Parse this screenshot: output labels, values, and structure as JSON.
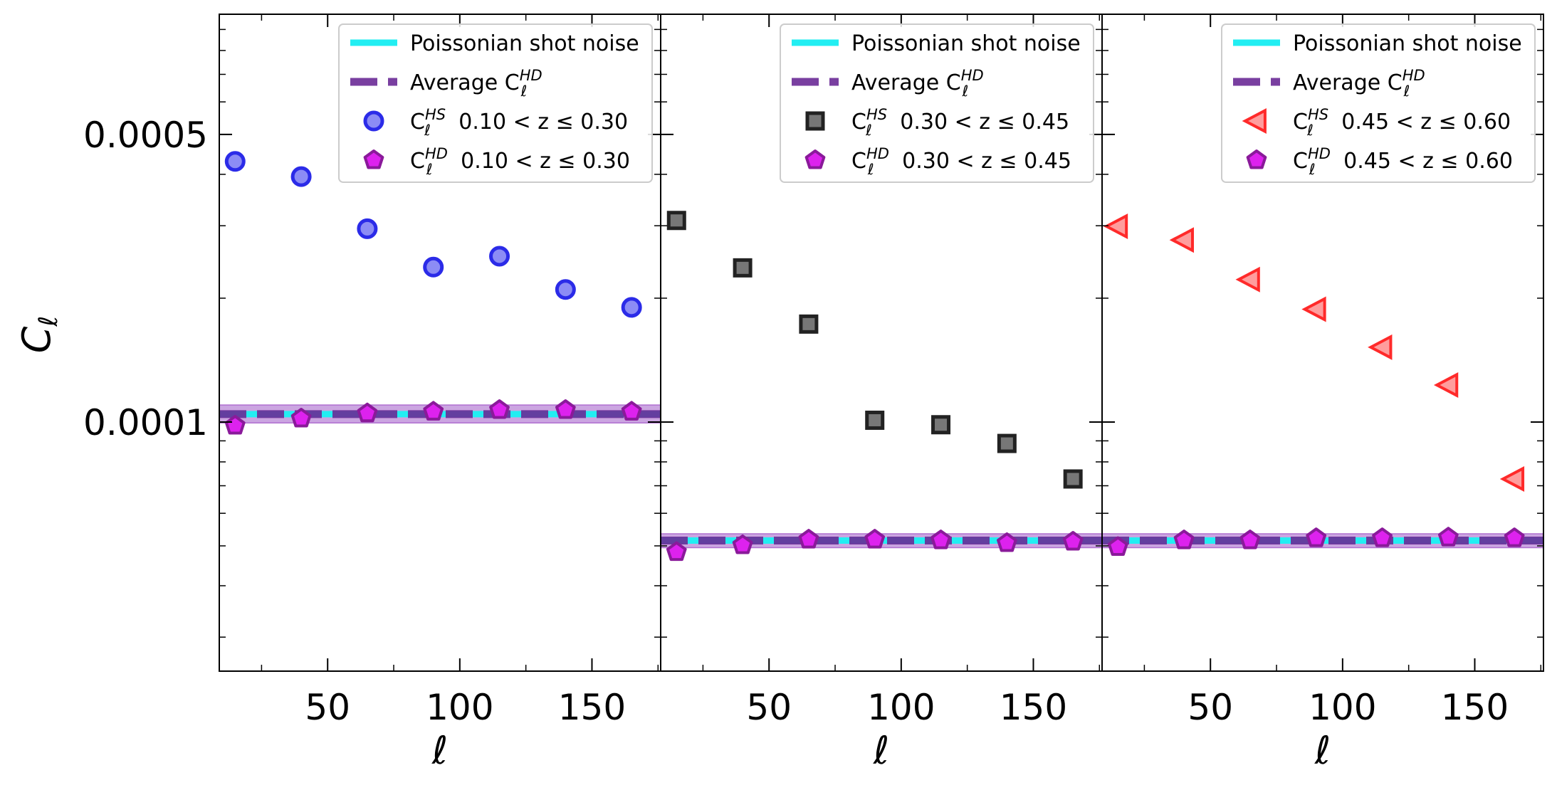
{
  "chart_data": {
    "type": "scatter",
    "ylabel": "C",
    "ylabel_subscript": "ℓ",
    "xlabel": "ℓ",
    "yscale": "log",
    "ylim": [
      2.48e-05,
      0.00098
    ],
    "xlim": [
      9,
      176
    ],
    "x_ticks": [
      50,
      100,
      150
    ],
    "x_tick_labels": [
      "50",
      "100",
      "150"
    ],
    "y_tick_labels": [
      {
        "value": 0.0005,
        "label": "0.0005"
      },
      {
        "value": 0.0001,
        "label": "0.0001"
      }
    ],
    "grid": false,
    "legend_placement": "top-right",
    "panels": [
      {
        "legend": [
          {
            "kind": "line",
            "text": "Poissonian shot noise"
          },
          {
            "kind": "dash",
            "text": "Average C",
            "sup": "HD",
            "sub": "ℓ"
          },
          {
            "kind": "marker",
            "text": "C",
            "sup": "HS",
            "sub": "ℓ",
            "range": "0.10 < z ≤ 0.30"
          },
          {
            "kind": "pentagon",
            "text": "C",
            "sup": "HD",
            "sub": "ℓ",
            "range": "0.10 < z ≤ 0.30"
          }
        ],
        "shot_noise": 0.0001045,
        "avg_hd": 0.0001045,
        "band": [
          9.95e-05,
          0.00011
        ],
        "series": [
          {
            "name": "C_ℓ^HS 0.10<z≤0.30",
            "marker": "circle",
            "color": "#3a3af0",
            "x": [
              15,
              40,
              65,
              90,
              115,
              140,
              165
            ],
            "y": [
              0.00043,
              0.000395,
              0.000295,
              0.000238,
              0.000253,
              0.00021,
              0.00019
            ]
          },
          {
            "name": "C_ℓ^HD 0.10<z≤0.30",
            "marker": "pentagon",
            "color": "#cc22dd",
            "x": [
              15,
              40,
              65,
              90,
              115,
              140,
              165
            ],
            "y": [
              9.8e-05,
              0.000102,
              0.000105,
              0.000106,
              0.000107,
              0.000107,
              0.000106
            ]
          }
        ]
      },
      {
        "legend": [
          {
            "kind": "line",
            "text": "Poissonian shot noise"
          },
          {
            "kind": "dash",
            "text": "Average C",
            "sup": "HD",
            "sub": "ℓ"
          },
          {
            "kind": "marker",
            "text": "C",
            "sup": "HS",
            "sub": "ℓ",
            "range": "0.30 < z ≤ 0.45"
          },
          {
            "kind": "pentagon",
            "text": "C",
            "sup": "HD",
            "sub": "ℓ",
            "range": "0.30 < z ≤ 0.45"
          }
        ],
        "shot_noise": 5.15e-05,
        "avg_hd": 5.15e-05,
        "band": [
          4.95e-05,
          5.35e-05
        ],
        "series": [
          {
            "name": "C_ℓ^HS 0.30<z≤0.45",
            "marker": "square",
            "color": "#6e6e6e",
            "x": [
              15,
              40,
              65,
              90,
              115,
              140,
              165
            ],
            "y": [
              0.000309,
              0.000237,
              0.000173,
              0.000101,
              9.85e-05,
              8.87e-05,
              7.27e-05
            ]
          },
          {
            "name": "C_ℓ^HD 0.30<z≤0.45",
            "marker": "pentagon",
            "color": "#cc22dd",
            "x": [
              15,
              40,
              65,
              90,
              115,
              140,
              165
            ],
            "y": [
              4.83e-05,
              5.02e-05,
              5.18e-05,
              5.18e-05,
              5.16e-05,
              5.08e-05,
              5.12e-05
            ]
          }
        ]
      },
      {
        "legend": [
          {
            "kind": "line",
            "text": "Poissonian shot noise"
          },
          {
            "kind": "dash",
            "text": "Average C",
            "sup": "HD",
            "sub": "ℓ"
          },
          {
            "kind": "marker",
            "text": "C",
            "sup": "HS",
            "sub": "ℓ",
            "range": "0.45 < z ≤ 0.60"
          },
          {
            "kind": "pentagon",
            "text": "C",
            "sup": "HD",
            "sub": "ℓ",
            "range": "0.45 < z ≤ 0.60"
          }
        ],
        "shot_noise": 5.15e-05,
        "avg_hd": 5.15e-05,
        "band": [
          4.95e-05,
          5.35e-05
        ],
        "series": [
          {
            "name": "C_ℓ^HS 0.45<z≤0.60",
            "marker": "triangle-left",
            "color": "#ff6666",
            "x": [
              15,
              40,
              65,
              90,
              115,
              140,
              165
            ],
            "y": [
              0.000299,
              0.000277,
              0.000222,
              0.000188,
              0.000152,
              0.000123,
              7.27e-05
            ]
          },
          {
            "name": "C_ℓ^HD 0.45<z≤0.60",
            "marker": "pentagon",
            "color": "#cc22dd",
            "x": [
              15,
              40,
              65,
              90,
              115,
              140,
              165
            ],
            "y": [
              4.97e-05,
              5.16e-05,
              5.16e-05,
              5.22e-05,
              5.22e-05,
              5.24e-05,
              5.22e-05
            ]
          }
        ]
      }
    ]
  }
}
